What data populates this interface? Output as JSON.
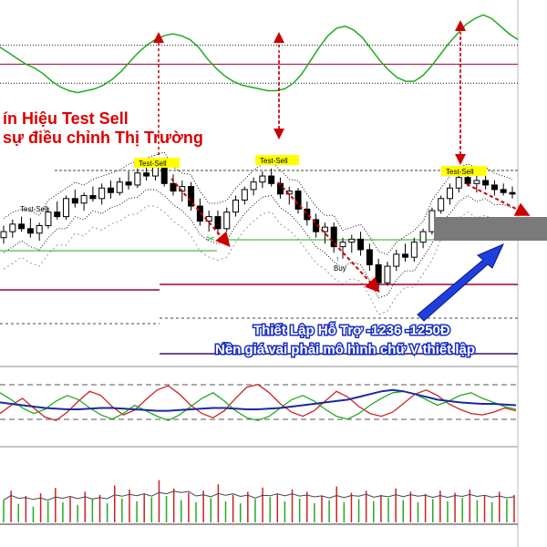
{
  "overlays": {
    "headline_1": "ín Hiệu Test Sell",
    "headline_2": "sự điều chỉnh Thị Trường",
    "support_1": "Thiết Lập Hỗ Trợ -1236  -1250Đ",
    "support_2": "Nền giá vai phải mô hình chữ V thiết lập"
  },
  "labels": {
    "test_sell": "Test-Sell",
    "buy": "Buy"
  },
  "colors": {
    "up_candle": "#ffffff",
    "down_candle": "#000000",
    "oscillator": "#22aa22",
    "arrow_red": "#cc0000",
    "arrow_blue": "#1f3fdc",
    "tag_bg": "#ffff00",
    "stoch_red": "#cc2222",
    "stoch_green": "#22aa22",
    "stoch_blue": "#1a2a9a",
    "support_box": "#7a7a7a"
  },
  "chart_data": [
    {
      "type": "line",
      "title": "",
      "series": [
        {
          "values": [
            58,
            52,
            46,
            40,
            36,
            30,
            22,
            16,
            12,
            10,
            12,
            14,
            18,
            24,
            32,
            42,
            52,
            60,
            66,
            70,
            72,
            70,
            66,
            58,
            46,
            36,
            28,
            22,
            18,
            16,
            14,
            12,
            12,
            14,
            20,
            30,
            44,
            58,
            70,
            78,
            80,
            76,
            68,
            56,
            44,
            34,
            26,
            22,
            22,
            28,
            38,
            50,
            62,
            72,
            82,
            88,
            92,
            88,
            80,
            72,
            66
          ]
        }
      ],
      "ylim": [
        0,
        100
      ],
      "reference_lines": [
        20,
        40,
        60
      ]
    },
    {
      "type": "candlestick",
      "title": "",
      "candles": [
        {
          "o": 1262,
          "h": 1270,
          "l": 1258,
          "c": 1266
        },
        {
          "o": 1266,
          "h": 1274,
          "l": 1262,
          "c": 1271
        },
        {
          "o": 1271,
          "h": 1276,
          "l": 1266,
          "c": 1268
        },
        {
          "o": 1268,
          "h": 1275,
          "l": 1262,
          "c": 1265
        },
        {
          "o": 1265,
          "h": 1272,
          "l": 1260,
          "c": 1270
        },
        {
          "o": 1270,
          "h": 1282,
          "l": 1268,
          "c": 1279
        },
        {
          "o": 1279,
          "h": 1286,
          "l": 1274,
          "c": 1276
        },
        {
          "o": 1276,
          "h": 1290,
          "l": 1274,
          "c": 1288
        },
        {
          "o": 1288,
          "h": 1294,
          "l": 1282,
          "c": 1285
        },
        {
          "o": 1285,
          "h": 1292,
          "l": 1280,
          "c": 1290
        },
        {
          "o": 1290,
          "h": 1296,
          "l": 1286,
          "c": 1288
        },
        {
          "o": 1288,
          "h": 1298,
          "l": 1284,
          "c": 1295
        },
        {
          "o": 1295,
          "h": 1300,
          "l": 1288,
          "c": 1292
        },
        {
          "o": 1292,
          "h": 1302,
          "l": 1290,
          "c": 1299
        },
        {
          "o": 1299,
          "h": 1306,
          "l": 1294,
          "c": 1297
        },
        {
          "o": 1297,
          "h": 1308,
          "l": 1295,
          "c": 1305
        },
        {
          "o": 1305,
          "h": 1310,
          "l": 1300,
          "c": 1303
        },
        {
          "o": 1303,
          "h": 1312,
          "l": 1300,
          "c": 1309
        },
        {
          "o": 1309,
          "h": 1314,
          "l": 1296,
          "c": 1298
        },
        {
          "o": 1298,
          "h": 1304,
          "l": 1290,
          "c": 1293
        },
        {
          "o": 1293,
          "h": 1300,
          "l": 1286,
          "c": 1296
        },
        {
          "o": 1296,
          "h": 1299,
          "l": 1280,
          "c": 1283
        },
        {
          "o": 1283,
          "h": 1288,
          "l": 1270,
          "c": 1273
        },
        {
          "o": 1273,
          "h": 1280,
          "l": 1266,
          "c": 1276
        },
        {
          "o": 1276,
          "h": 1280,
          "l": 1264,
          "c": 1268
        },
        {
          "o": 1268,
          "h": 1282,
          "l": 1266,
          "c": 1279
        },
        {
          "o": 1279,
          "h": 1290,
          "l": 1276,
          "c": 1287
        },
        {
          "o": 1287,
          "h": 1296,
          "l": 1284,
          "c": 1294
        },
        {
          "o": 1294,
          "h": 1302,
          "l": 1290,
          "c": 1299
        },
        {
          "o": 1299,
          "h": 1306,
          "l": 1295,
          "c": 1303
        },
        {
          "o": 1303,
          "h": 1308,
          "l": 1296,
          "c": 1298
        },
        {
          "o": 1298,
          "h": 1302,
          "l": 1288,
          "c": 1291
        },
        {
          "o": 1291,
          "h": 1296,
          "l": 1284,
          "c": 1293
        },
        {
          "o": 1293,
          "h": 1295,
          "l": 1278,
          "c": 1281
        },
        {
          "o": 1281,
          "h": 1286,
          "l": 1270,
          "c": 1274
        },
        {
          "o": 1274,
          "h": 1278,
          "l": 1262,
          "c": 1266
        },
        {
          "o": 1266,
          "h": 1272,
          "l": 1258,
          "c": 1269
        },
        {
          "o": 1269,
          "h": 1272,
          "l": 1252,
          "c": 1256
        },
        {
          "o": 1256,
          "h": 1262,
          "l": 1248,
          "c": 1259
        },
        {
          "o": 1259,
          "h": 1264,
          "l": 1252,
          "c": 1261
        },
        {
          "o": 1261,
          "h": 1266,
          "l": 1250,
          "c": 1254
        },
        {
          "o": 1254,
          "h": 1258,
          "l": 1240,
          "c": 1244
        },
        {
          "o": 1244,
          "h": 1248,
          "l": 1228,
          "c": 1232
        },
        {
          "o": 1232,
          "h": 1246,
          "l": 1230,
          "c": 1243
        },
        {
          "o": 1243,
          "h": 1254,
          "l": 1240,
          "c": 1251
        },
        {
          "o": 1251,
          "h": 1258,
          "l": 1246,
          "c": 1249
        },
        {
          "o": 1249,
          "h": 1262,
          "l": 1246,
          "c": 1259
        },
        {
          "o": 1259,
          "h": 1268,
          "l": 1255,
          "c": 1266
        },
        {
          "o": 1266,
          "h": 1282,
          "l": 1264,
          "c": 1280
        },
        {
          "o": 1280,
          "h": 1290,
          "l": 1278,
          "c": 1288
        },
        {
          "o": 1288,
          "h": 1298,
          "l": 1284,
          "c": 1295
        },
        {
          "o": 1295,
          "h": 1304,
          "l": 1292,
          "c": 1302
        },
        {
          "o": 1302,
          "h": 1306,
          "l": 1296,
          "c": 1298
        },
        {
          "o": 1298,
          "h": 1304,
          "l": 1292,
          "c": 1300
        },
        {
          "o": 1300,
          "h": 1304,
          "l": 1294,
          "c": 1297
        },
        {
          "o": 1297,
          "h": 1300,
          "l": 1290,
          "c": 1294
        },
        {
          "o": 1294,
          "h": 1298,
          "l": 1290,
          "c": 1292
        },
        {
          "o": 1292,
          "h": 1296,
          "l": 1288,
          "c": 1291
        }
      ],
      "reference_lines": [
        1265,
        1243
      ]
    },
    {
      "type": "line",
      "title": "",
      "series": [
        {
          "color": "red",
          "values": [
            40,
            52,
            62,
            48,
            35,
            30,
            42,
            58,
            72,
            66,
            50,
            38,
            45,
            60,
            74,
            80,
            68,
            52,
            40,
            34,
            44,
            62,
            78,
            82,
            70,
            54,
            42,
            36,
            44,
            58,
            72,
            64,
            50,
            40,
            36,
            42,
            55,
            68,
            74,
            66,
            54,
            46,
            40,
            38,
            42,
            48,
            44
          ]
        },
        {
          "color": "green",
          "values": [
            70,
            60,
            48,
            40,
            46,
            58,
            66,
            60,
            48,
            38,
            32,
            40,
            52,
            44,
            36,
            30,
            38,
            50,
            62,
            70,
            58,
            44,
            34,
            30,
            36,
            48,
            60,
            66,
            58,
            46,
            36,
            32,
            40,
            52,
            62,
            70,
            72,
            68,
            60,
            52,
            58,
            66,
            70,
            62,
            56,
            50,
            46
          ]
        },
        {
          "color": "blue",
          "values": [
            56,
            54,
            52,
            50,
            48,
            47,
            46,
            46,
            47,
            48,
            48,
            47,
            46,
            45,
            44,
            44,
            45,
            46,
            47,
            48,
            48,
            47,
            46,
            46,
            47,
            48,
            50,
            52,
            54,
            56,
            58,
            60,
            64,
            68,
            72,
            74,
            72,
            68,
            64,
            60,
            58,
            56,
            55,
            54,
            54,
            53,
            52
          ]
        }
      ],
      "ylim": [
        0,
        100
      ],
      "reference_lines": [
        40,
        60
      ]
    },
    {
      "type": "bar",
      "title": "",
      "values": [
        42,
        60,
        35,
        50,
        30,
        55,
        40,
        65,
        38,
        48,
        33,
        58,
        44,
        52,
        36,
        70,
        45,
        62,
        40,
        54,
        47,
        80,
        50,
        64,
        42,
        56,
        38,
        60,
        46,
        72,
        40,
        52,
        36,
        58,
        44,
        66,
        48,
        54,
        40,
        62,
        45,
        58,
        36,
        50,
        42,
        68,
        38,
        56,
        44,
        60,
        40,
        52,
        46,
        64,
        42,
        58,
        38,
        54,
        44,
        60,
        40,
        56,
        46,
        62,
        42,
        50,
        38,
        58,
        44,
        52
      ],
      "colors_pattern": [
        "green",
        "red"
      ],
      "ylim": [
        0,
        100
      ]
    }
  ]
}
